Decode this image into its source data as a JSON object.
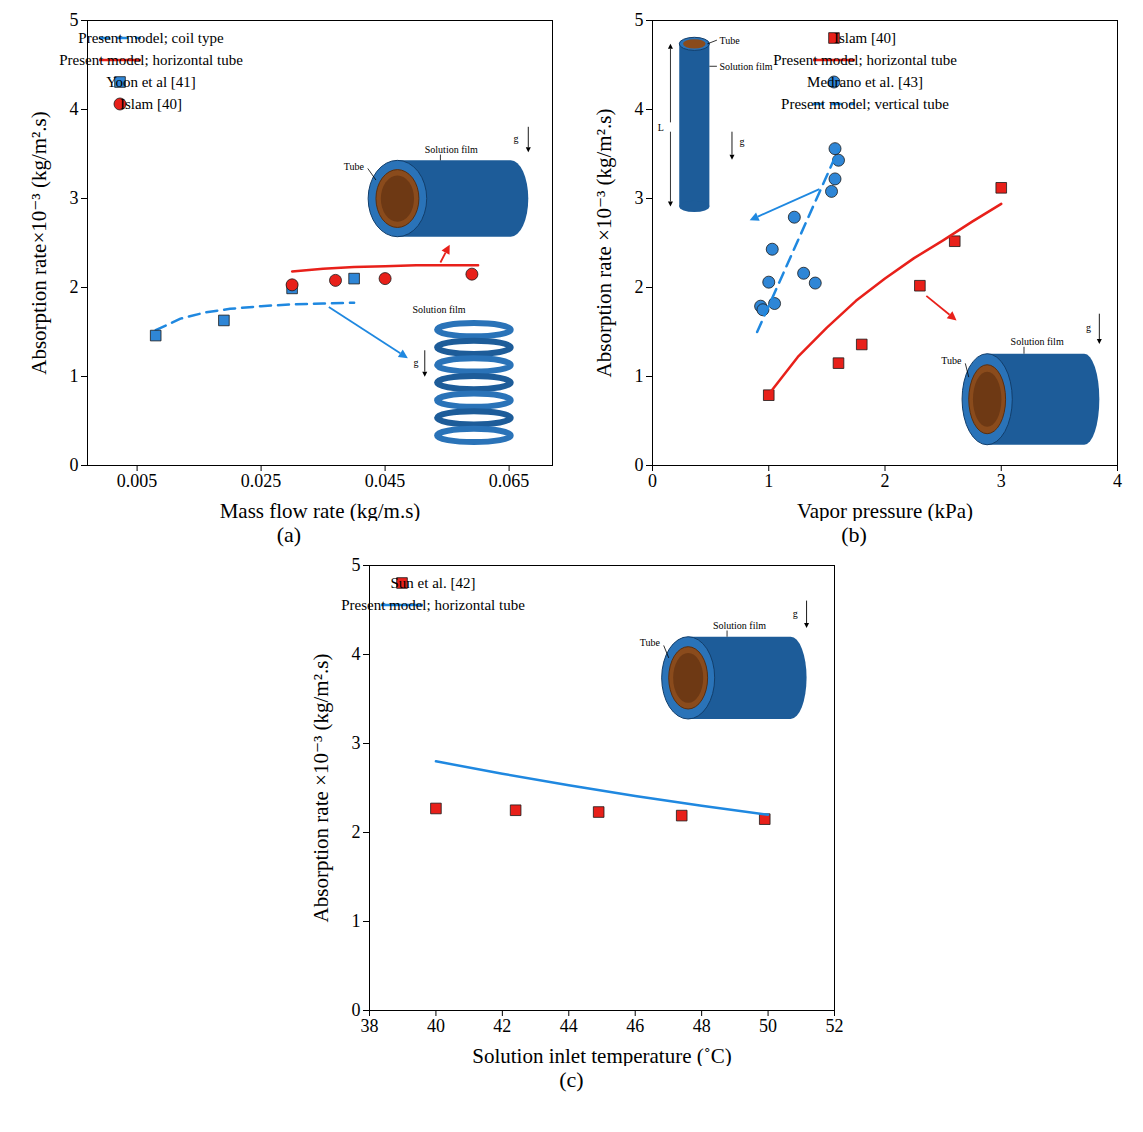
{
  "chart_data": [
    {
      "type": "line",
      "caption": "(a)",
      "x_label": "Mass flow rate (kg/m.s)",
      "y_label": "Absorption rate×10⁻³ (kg/m².s)",
      "xlim": [
        -0.003,
        0.072
      ],
      "xticks": [
        0.005,
        0.025,
        0.045,
        0.065
      ],
      "ylim": [
        0,
        5
      ],
      "yticks": [
        0,
        1,
        2,
        3,
        4,
        5
      ],
      "legend": "top-left",
      "series": [
        {
          "name": "Present model; coil type",
          "type": "line",
          "line_style": "dashed",
          "color": "#1f88e0",
          "x": [
            0.008,
            0.012,
            0.016,
            0.02,
            0.025,
            0.03,
            0.035,
            0.04
          ],
          "values": [
            1.52,
            1.65,
            1.72,
            1.76,
            1.79,
            1.81,
            1.82,
            1.83
          ]
        },
        {
          "name": "Present model; horizontal tube",
          "type": "line",
          "line_style": "solid",
          "color": "#e8201a",
          "x": [
            0.03,
            0.035,
            0.04,
            0.045,
            0.05,
            0.055,
            0.06
          ],
          "values": [
            2.18,
            2.21,
            2.23,
            2.24,
            2.25,
            2.25,
            2.25
          ]
        },
        {
          "name": "Yoon et al [41]",
          "type": "scatter",
          "marker": "square",
          "color": "#2f86d6",
          "x": [
            0.008,
            0.019,
            0.03,
            0.04
          ],
          "values": [
            1.46,
            1.63,
            1.99,
            2.1
          ]
        },
        {
          "name": "Islam [40]",
          "type": "scatter",
          "marker": "circle",
          "color": "#e8201a",
          "x": [
            0.03,
            0.037,
            0.045,
            0.059
          ],
          "values": [
            2.03,
            2.08,
            2.1,
            2.15
          ]
        }
      ],
      "annotations": [
        [
          "Tube",
          "Solution film",
          "g"
        ],
        [
          "Solution film",
          "g"
        ]
      ]
    },
    {
      "type": "line",
      "caption": "(b)",
      "x_label": "Vapor pressure (kPa)",
      "y_label": "Absorption rate ×10⁻³ (kg/m².s)",
      "xlim": [
        0,
        4
      ],
      "xticks": [
        0,
        1,
        2,
        3,
        4
      ],
      "ylim": [
        0,
        5
      ],
      "yticks": [
        0,
        1,
        2,
        3,
        4,
        5
      ],
      "legend": "top-right",
      "series": [
        {
          "name": "Islam [40]",
          "type": "scatter",
          "marker": "square",
          "color": "#e8201a",
          "x": [
            1.0,
            1.6,
            1.8,
            2.3,
            2.6,
            3.0
          ],
          "values": [
            0.79,
            1.15,
            1.36,
            2.02,
            2.52,
            3.12
          ]
        },
        {
          "name": "Present model; horizontal tube",
          "type": "line",
          "line_style": "solid",
          "color": "#e8201a",
          "x": [
            1.0,
            1.25,
            1.5,
            1.75,
            2.0,
            2.25,
            2.5,
            2.75,
            3.0
          ],
          "values": [
            0.8,
            1.22,
            1.55,
            1.85,
            2.1,
            2.33,
            2.53,
            2.74,
            2.94
          ]
        },
        {
          "name": "Medrano et al. [43]",
          "type": "scatter",
          "marker": "circle",
          "color": "#2f86d6",
          "x": [
            0.93,
            0.95,
            1.0,
            1.03,
            1.05,
            1.22,
            1.3,
            1.4,
            1.54,
            1.57,
            1.57,
            1.6
          ],
          "values": [
            1.79,
            1.75,
            2.06,
            2.43,
            1.82,
            2.79,
            2.16,
            2.05,
            3.08,
            3.22,
            3.56,
            3.43
          ]
        },
        {
          "name": "Present model; vertical tube",
          "type": "line",
          "line_style": "dashed",
          "color": "#1f88e0",
          "x": [
            0.9,
            1.6
          ],
          "values": [
            1.5,
            3.55
          ]
        }
      ],
      "annotations": [
        [
          "Tube",
          "Solution film",
          "L",
          "g"
        ],
        [
          "Tube",
          "Solution film",
          "g"
        ]
      ]
    },
    {
      "type": "line",
      "caption": "(c)",
      "x_label": "Solution inlet temperature (˚C)",
      "y_label": "Absorption rate ×10⁻³ (kg/m².s)",
      "xlim": [
        38,
        52
      ],
      "xticks": [
        38,
        40,
        42,
        44,
        46,
        48,
        50,
        52
      ],
      "ylim": [
        0,
        5
      ],
      "yticks": [
        0,
        1,
        2,
        3,
        4,
        5
      ],
      "legend": "top-left",
      "series": [
        {
          "name": "Sun et al. [42]",
          "type": "scatter",
          "marker": "square",
          "color": "#e8201a",
          "x": [
            40,
            42.4,
            44.9,
            47.4,
            49.9
          ],
          "values": [
            2.27,
            2.25,
            2.23,
            2.19,
            2.15
          ]
        },
        {
          "name": "Present model; horizontal tube",
          "type": "line",
          "line_style": "solid",
          "color": "#1f88e0",
          "x": [
            40,
            42,
            44,
            46,
            48,
            50
          ],
          "values": [
            2.8,
            2.66,
            2.53,
            2.41,
            2.3,
            2.2
          ]
        }
      ],
      "annotations": [
        [
          "Tube",
          "Solution film",
          "g"
        ]
      ]
    }
  ]
}
